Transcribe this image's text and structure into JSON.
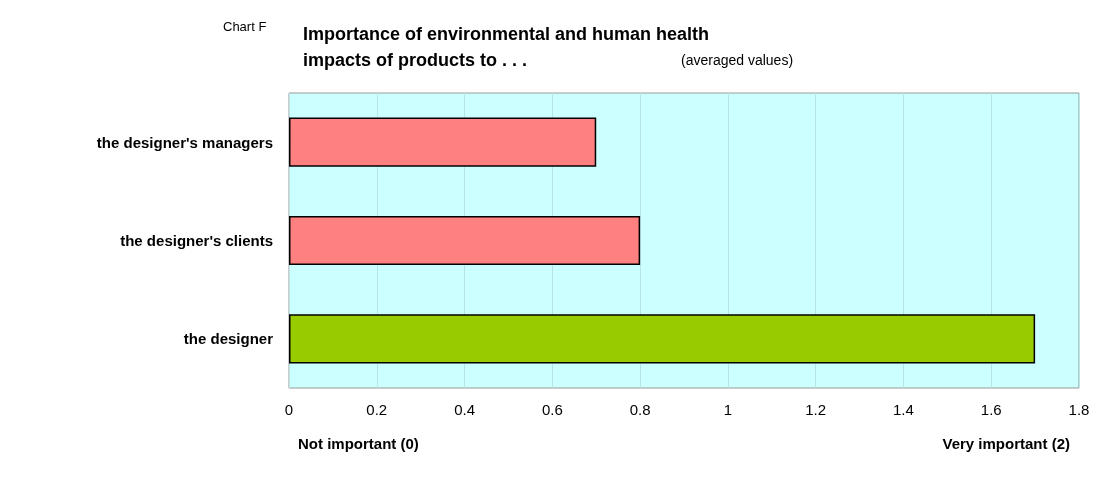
{
  "chart_data": {
    "type": "bar",
    "orientation": "horizontal",
    "title": "Importance of environmental and human health impacts of products to . . .",
    "subtitle": "(averaged values)",
    "annotations": [
      "Chart F",
      "Not important (0)",
      "Very important (2)"
    ],
    "categories": [
      "the designer's managers",
      "the designer's clients",
      "the designer"
    ],
    "values": [
      0.7,
      0.8,
      1.7
    ],
    "colors": [
      "#ff8080",
      "#ff8080",
      "#99cc00"
    ],
    "xlim": [
      0,
      1.8
    ],
    "xticks": [
      0,
      0.2,
      0.4,
      0.6,
      0.8,
      1,
      1.2,
      1.4,
      1.6,
      1.8
    ],
    "grid": "x"
  }
}
